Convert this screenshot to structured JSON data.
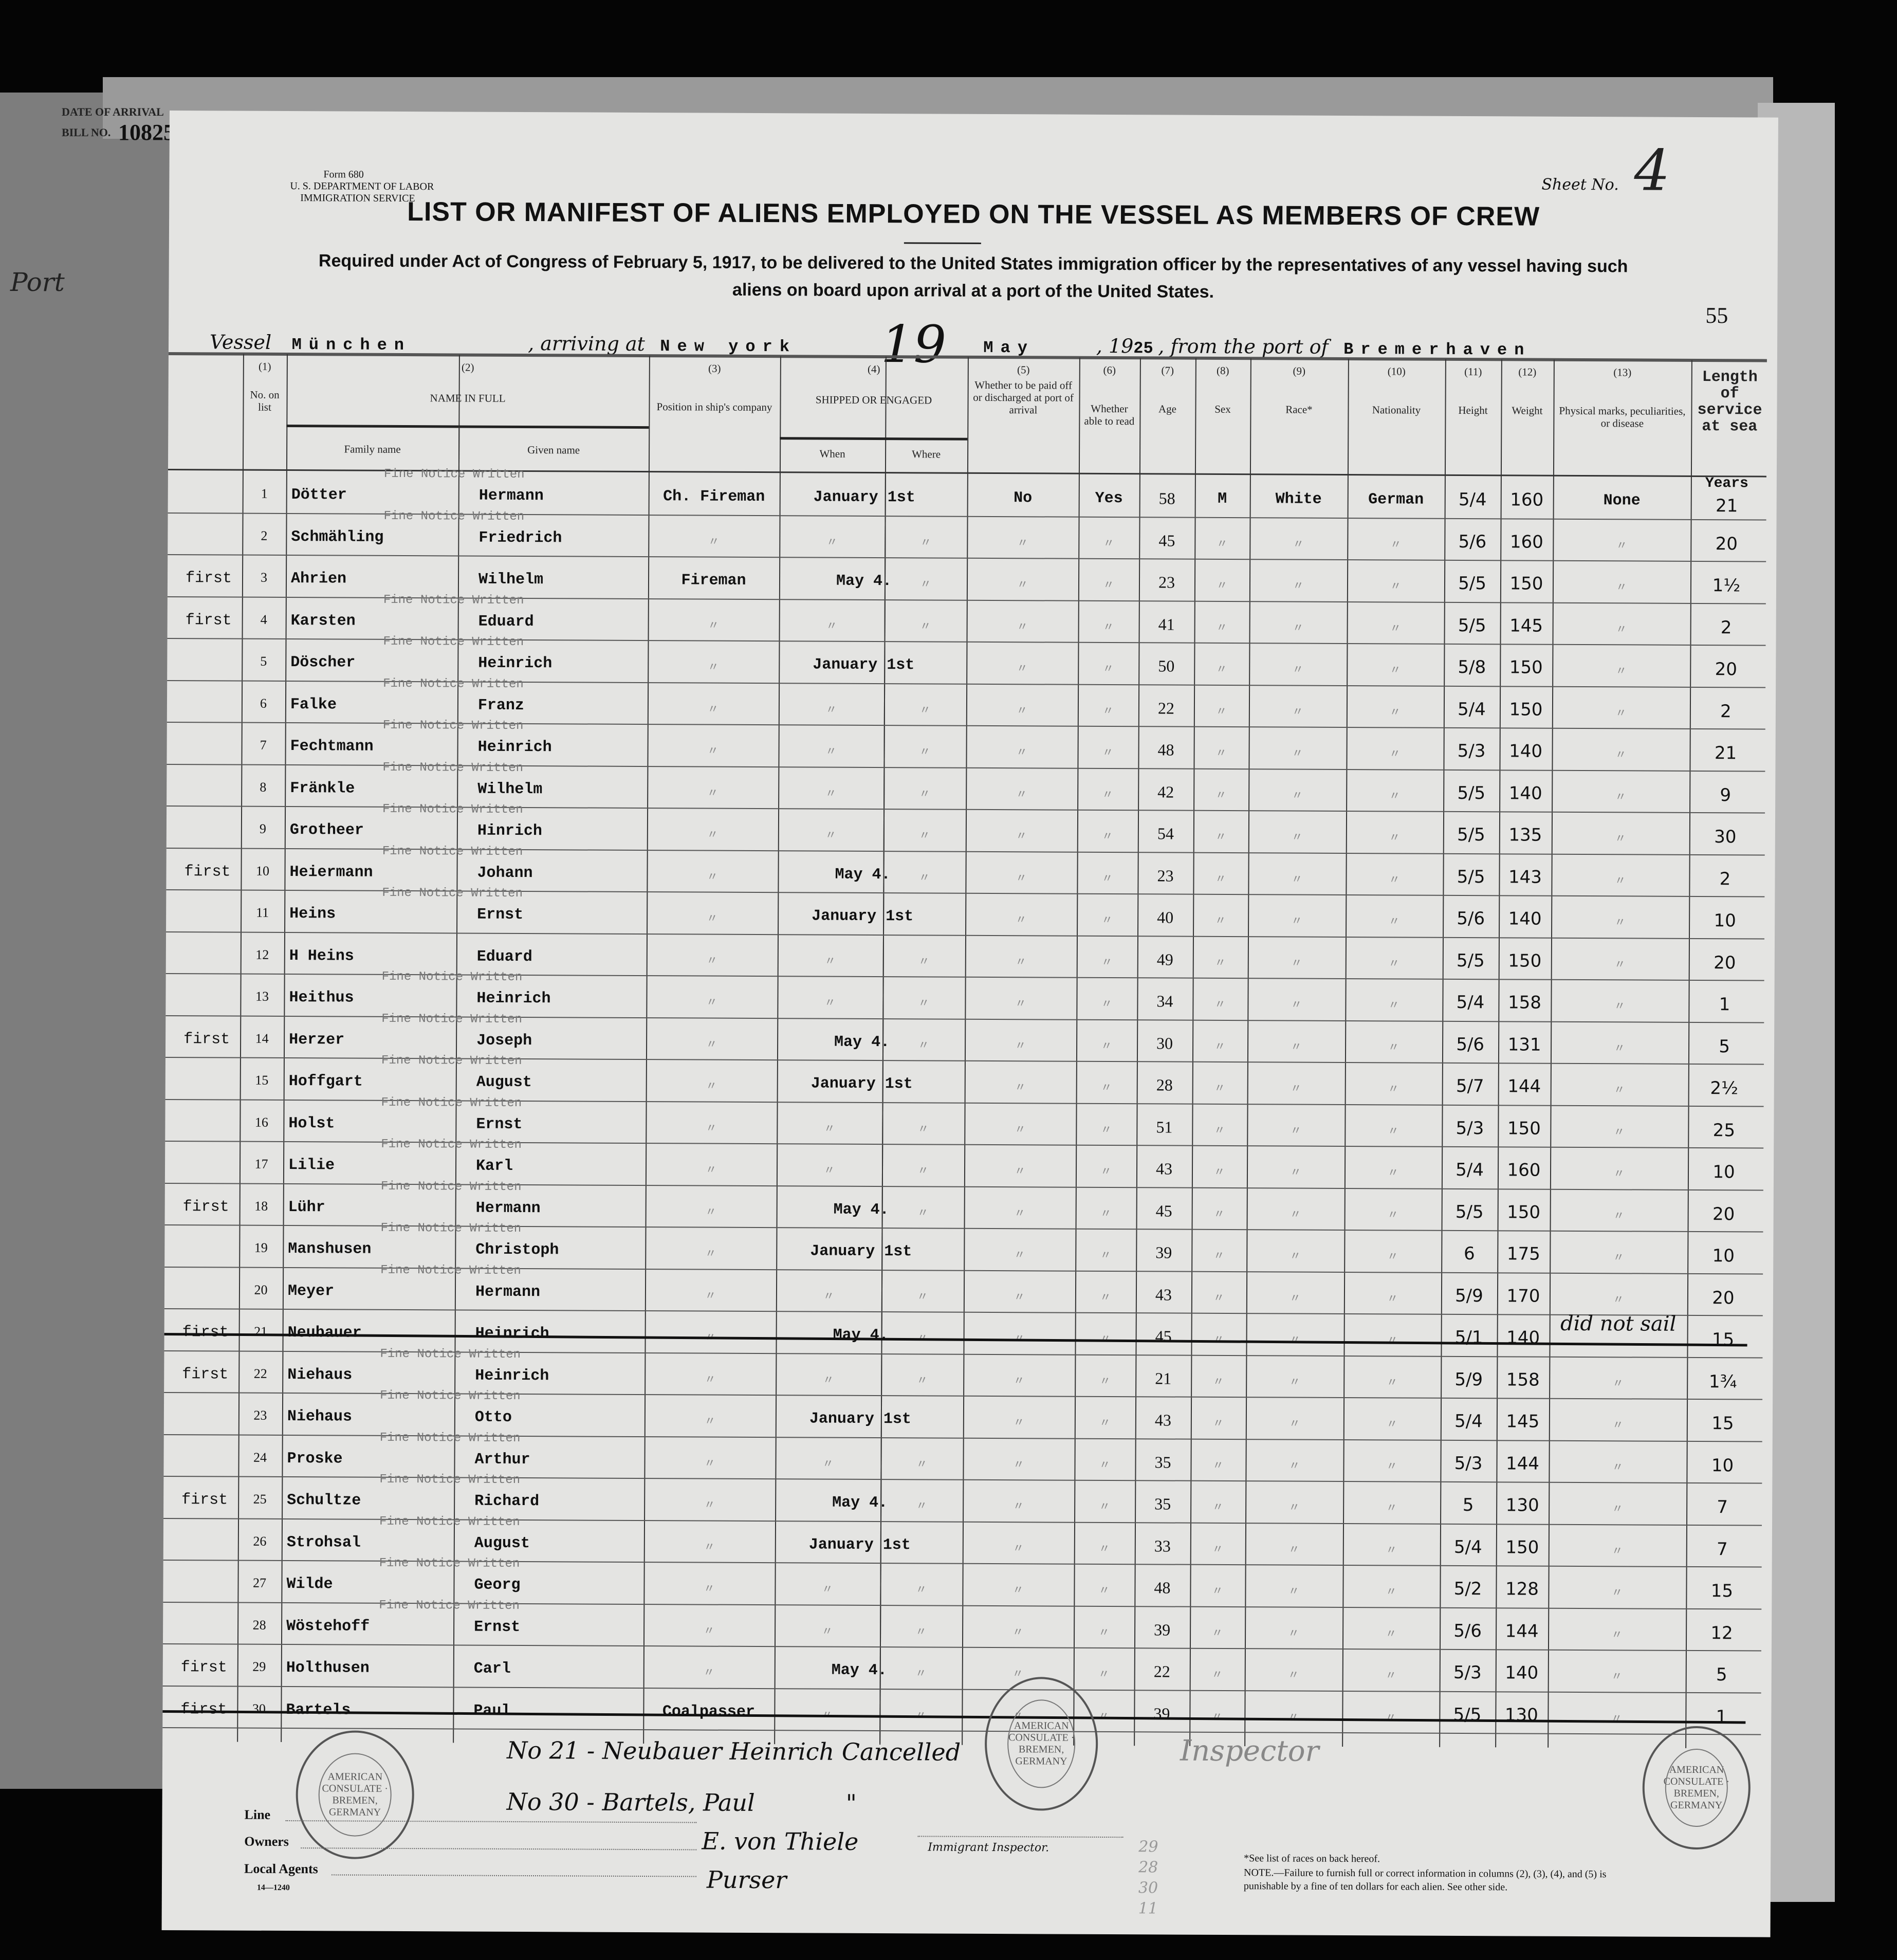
{
  "behind_sheet": {
    "date_of_arrival_label": "DATE OF ARRIVAL",
    "bill_no_label": "BILL NO.",
    "bill_no": "10825",
    "port_label": "Port"
  },
  "form": {
    "form_no": "Form 680",
    "department": "U. S. DEPARTMENT OF LABOR",
    "service": "IMMIGRATION SERVICE",
    "sheet_label": "Sheet No.",
    "sheet_no": "4",
    "page_no": "55",
    "title": "LIST OR MANIFEST OF ALIENS EMPLOYED ON THE VESSEL AS MEMBERS OF CREW",
    "subtitle_line1": "Required under Act of Congress of February 5, 1917, to be delivered to the United States immigration officer by the representatives of any vessel having such",
    "subtitle_line2": "aliens on board upon arrival at a port of the United States.",
    "vessel_label": "Vessel",
    "vessel": "München",
    "arriving_label": ", arriving at",
    "arriving_at": "New york",
    "day": "19",
    "month": "May",
    "year_prefix": ", 19",
    "year_suffix": "25",
    "from_label": ", from the port of",
    "from_port": "Bremerhaven"
  },
  "columns": {
    "c1_num": "(1)",
    "c1": "No. on list",
    "c2_num": "(2)",
    "c2": "NAME IN FULL",
    "c2a": "Family name",
    "c2b": "Given name",
    "c3_num": "(3)",
    "c3": "Position in ship's company",
    "c4_num": "(4)",
    "c4": "SHIPPED OR ENGAGED",
    "c4a": "When",
    "c4b": "Where",
    "c5_num": "(5)",
    "c5": "Whether to be paid off or discharged at port of arrival",
    "c6_num": "(6)",
    "c6": "Whether able to read",
    "c7_num": "(7)",
    "c7": "Age",
    "c8_num": "(8)",
    "c8": "Sex",
    "c9_num": "(9)",
    "c9": "Race*",
    "c10_num": "(10)",
    "c10": "Nationality",
    "c11_num": "(11)",
    "c11": "Height",
    "c12_num": "(12)",
    "c12": "Weight",
    "c13_num": "(13)",
    "c13": "Physical marks, peculiarities, or disease",
    "c14": "Length of service at sea"
  },
  "fine_notice_text": "Fine Notice Written",
  "ditto": "〃",
  "years_label": "Years",
  "rows": [
    {
      "no": "1",
      "note": "",
      "family": "Dötter",
      "given": "Hermann",
      "position": "Ch. Fireman",
      "when": "January 1st",
      "paid": "No",
      "read": "Yes",
      "age": "58",
      "sex": "M",
      "race": "White",
      "nationality": "German",
      "height": "5/4",
      "weight": "160",
      "marks": "None",
      "length": "21",
      "fine": true,
      "struck": false
    },
    {
      "no": "2",
      "note": "",
      "family": "Schmähling",
      "given": "Friedrich",
      "position": "",
      "when": "",
      "age": "45",
      "height": "5/6",
      "weight": "160",
      "length": "20",
      "fine": true,
      "struck": false
    },
    {
      "no": "3",
      "note": "first",
      "family": "Ahrien",
      "given": "Wilhelm",
      "position": "Fireman",
      "when": "May 4.",
      "age": "23",
      "height": "5/5",
      "weight": "150",
      "length": "1½",
      "fine": false,
      "struck": false
    },
    {
      "no": "4",
      "note": "first",
      "family": "Karsten",
      "given": "Eduard",
      "position": "",
      "when": "",
      "age": "41",
      "height": "5/5",
      "weight": "145",
      "length": "2",
      "fine": true,
      "struck": false
    },
    {
      "no": "5",
      "note": "",
      "family": "Döscher",
      "given": "Heinrich",
      "position": "",
      "when": "January 1st",
      "age": "50",
      "height": "5/8",
      "weight": "150",
      "length": "20",
      "fine": true,
      "struck": false
    },
    {
      "no": "6",
      "note": "",
      "family": "Falke",
      "given": "Franz",
      "position": "",
      "when": "",
      "age": "22",
      "height": "5/4",
      "weight": "150",
      "length": "2",
      "fine": true,
      "struck": false
    },
    {
      "no": "7",
      "note": "",
      "family": "Fechtmann",
      "given": "Heinrich",
      "position": "",
      "when": "",
      "age": "48",
      "height": "5/3",
      "weight": "140",
      "length": "21",
      "fine": true,
      "struck": false
    },
    {
      "no": "8",
      "note": "",
      "family": "Fränkle",
      "given": "Wilhelm",
      "position": "",
      "when": "",
      "age": "42",
      "height": "5/5",
      "weight": "140",
      "length": "9",
      "fine": true,
      "struck": false
    },
    {
      "no": "9",
      "note": "",
      "family": "Grotheer",
      "given": "Hinrich",
      "position": "",
      "when": "",
      "age": "54",
      "height": "5/5",
      "weight": "135",
      "length": "30",
      "fine": true,
      "struck": false
    },
    {
      "no": "10",
      "note": "first",
      "family": "Heiermann",
      "given": "Johann",
      "position": "",
      "when": "May 4.",
      "age": "23",
      "height": "5/5",
      "weight": "143",
      "length": "2",
      "fine": true,
      "struck": false
    },
    {
      "no": "11",
      "note": "",
      "family": "Heins",
      "given": "Ernst",
      "position": "",
      "when": "January 1st",
      "age": "40",
      "height": "5/6",
      "weight": "140",
      "length": "10",
      "fine": true,
      "struck": false
    },
    {
      "no": "12",
      "note": "",
      "family": "H   Heins",
      "given": "Eduard",
      "position": "",
      "when": "",
      "age": "49",
      "height": "5/5",
      "weight": "150",
      "length": "20",
      "fine": false,
      "struck": false
    },
    {
      "no": "13",
      "note": "",
      "family": "Heithus",
      "given": "Heinrich",
      "position": "",
      "when": "",
      "age": "34",
      "height": "5/4",
      "weight": "158",
      "length": "1",
      "fine": true,
      "struck": false
    },
    {
      "no": "14",
      "note": "first",
      "family": "Herzer",
      "given": "Joseph",
      "position": "",
      "when": "May 4.",
      "age": "30",
      "height": "5/6",
      "weight": "131",
      "length": "5",
      "fine": true,
      "struck": false
    },
    {
      "no": "15",
      "note": "",
      "family": "Hoffgart",
      "given": "August",
      "position": "",
      "when": "January 1st",
      "age": "28",
      "height": "5/7",
      "weight": "144",
      "length": "2½",
      "fine": true,
      "struck": false
    },
    {
      "no": "16",
      "note": "",
      "family": "Holst",
      "given": "Ernst",
      "position": "",
      "when": "",
      "age": "51",
      "height": "5/3",
      "weight": "150",
      "length": "25",
      "fine": true,
      "struck": false
    },
    {
      "no": "17",
      "note": "",
      "family": "Lilie",
      "given": "Karl",
      "position": "",
      "when": "",
      "age": "43",
      "height": "5/4",
      "weight": "160",
      "length": "10",
      "fine": true,
      "struck": false
    },
    {
      "no": "18",
      "note": "first",
      "family": "Lühr",
      "given": "Hermann",
      "position": "",
      "when": "May 4.",
      "age": "45",
      "height": "5/5",
      "weight": "150",
      "length": "20",
      "fine": true,
      "struck": false
    },
    {
      "no": "19",
      "note": "",
      "family": "Manshusen",
      "given": "Christoph",
      "position": "",
      "when": "January 1st",
      "age": "39",
      "height": "6",
      "weight": "175",
      "length": "10",
      "fine": true,
      "struck": false
    },
    {
      "no": "20",
      "note": "",
      "family": "Meyer",
      "given": "Hermann",
      "position": "",
      "when": "",
      "age": "43",
      "height": "5/9",
      "weight": "170",
      "length": "20",
      "fine": true,
      "struck": false
    },
    {
      "no": "21",
      "note": "first",
      "family": "Neubauer",
      "given": "Heinrich",
      "position": "",
      "when": "May 4.",
      "age": "45",
      "height": "5/1",
      "weight": "140",
      "marks": "did not sail",
      "length": "15",
      "fine": false,
      "struck": true
    },
    {
      "no": "22",
      "note": "first",
      "family": "Niehaus",
      "given": "Heinrich",
      "position": "",
      "when": "",
      "age": "21",
      "height": "5/9",
      "weight": "158",
      "length": "1¾",
      "fine": true,
      "struck": false
    },
    {
      "no": "23",
      "note": "",
      "family": "Niehaus",
      "given": "Otto",
      "position": "",
      "when": "January 1st",
      "age": "43",
      "height": "5/4",
      "weight": "145",
      "length": "15",
      "fine": true,
      "struck": false
    },
    {
      "no": "24",
      "note": "",
      "family": "Proske",
      "given": "Arthur",
      "position": "",
      "when": "",
      "age": "35",
      "height": "5/3",
      "weight": "144",
      "length": "10",
      "fine": true,
      "struck": false
    },
    {
      "no": "25",
      "note": "first",
      "family": "Schultze",
      "given": "Richard",
      "position": "",
      "when": "May 4.",
      "age": "35",
      "height": "5",
      "weight": "130",
      "length": "7",
      "fine": true,
      "struck": false
    },
    {
      "no": "26",
      "note": "",
      "family": "Strohsal",
      "given": "August",
      "position": "",
      "when": "January 1st",
      "age": "33",
      "height": "5/4",
      "weight": "150",
      "length": "7",
      "fine": true,
      "struck": false
    },
    {
      "no": "27",
      "note": "",
      "family": "Wilde",
      "given": "Georg",
      "position": "",
      "when": "",
      "age": "48",
      "height": "5/2",
      "weight": "128",
      "length": "15",
      "fine": true,
      "struck": false
    },
    {
      "no": "28",
      "note": "",
      "family": "Wöstehoff",
      "given": "Ernst",
      "position": "",
      "when": "",
      "age": "39",
      "height": "5/6",
      "weight": "144",
      "length": "12",
      "fine": true,
      "struck": false
    },
    {
      "no": "29",
      "note": "first",
      "family": "Holthusen",
      "given": "Carl",
      "position": "",
      "when": "May 4.",
      "age": "22",
      "height": "5/3",
      "weight": "140",
      "length": "5",
      "fine": false,
      "struck": false
    },
    {
      "no": "30",
      "note": "first",
      "family": "Bartels",
      "given": "Paul",
      "position": "Coalpasser",
      "when": "",
      "age": "39",
      "height": "5/5",
      "weight": "130",
      "length": "1",
      "fine": false,
      "struck": true
    }
  ],
  "handwritten": {
    "note1": "No 21 - Neubauer Heinrich Cancelled",
    "note2": "No 30 - Bartels, Paul",
    "note2_ditto": "\"",
    "signature": "E. von Thiele",
    "signature_title": "Purser",
    "inspector_signature": "Inspector",
    "margin_numbers": "29 28 30 11"
  },
  "footer": {
    "line_label": "Line",
    "owners_label": "Owners",
    "agents_label": "Local Agents",
    "print_code": "14—1240",
    "inspector_label": "Immigrant Inspector.",
    "races_note": "*See list of races on back hereof.",
    "note": "NOTE.—Failure to furnish full or correct information in columns (2), (3), (4), and (5) is punishable by a fine of ten dollars for each alien. See other side."
  },
  "stamps": {
    "text": "AMERICAN CONSULATE · BREMEN, GERMANY"
  }
}
